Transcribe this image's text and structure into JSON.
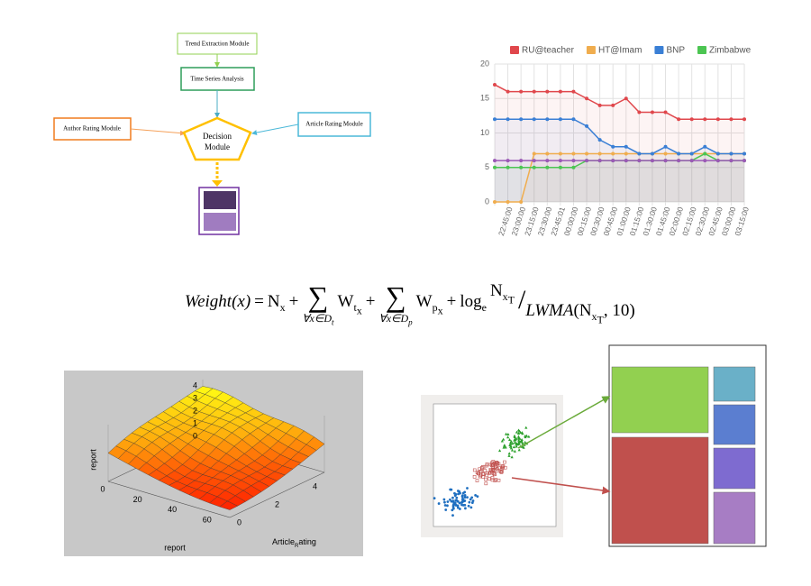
{
  "diagram": {
    "nodes": [
      "Trend Extraction Module",
      "Time Series Analysis",
      "Author Rating Module",
      "Article Rating Module"
    ],
    "decision": [
      "Decision",
      "Module"
    ]
  },
  "chart_data": {
    "type": "line",
    "categories": [
      null,
      "22:45:00",
      "23:00:00",
      "23:15:00",
      "23:30:00",
      "23:45:01",
      "00:00:00",
      "00:15:00",
      "00:30:00",
      "00:45:00",
      "01:00:00",
      "01:15:00",
      "01:30:00",
      "01:45:00",
      "02:00:00",
      "02:15:00",
      "02:30:00",
      "02:45:00",
      "03:00:00",
      "03:15:00"
    ],
    "series": [
      {
        "name": "RU@teacher",
        "color": "#e0474c",
        "values": [
          17,
          16,
          16,
          16,
          16,
          16,
          16,
          15,
          14,
          14,
          15,
          13,
          13,
          13,
          12,
          12,
          12,
          12,
          12,
          12
        ]
      },
      {
        "name": "HT@Imam",
        "color": "#f0ad4e",
        "values": [
          0,
          0,
          0,
          7,
          7,
          7,
          7,
          7,
          7,
          7,
          7,
          7,
          7,
          7,
          7,
          7,
          7,
          7,
          7,
          7
        ]
      },
      {
        "name": "BNP",
        "color": "#3a7fd5",
        "values": [
          12,
          12,
          12,
          12,
          12,
          12,
          12,
          11,
          9,
          8,
          8,
          7,
          7,
          8,
          7,
          7,
          8,
          7,
          7,
          7
        ]
      },
      {
        "name": "Zimbabwe",
        "color": "#4cc552",
        "values": [
          5,
          5,
          5,
          5,
          5,
          5,
          5,
          6,
          6,
          6,
          6,
          6,
          6,
          6,
          6,
          6,
          7,
          6,
          6,
          6
        ]
      },
      {
        "color": "#9b59b6",
        "values": [
          6,
          6,
          6,
          6,
          6,
          6,
          6,
          6,
          6,
          6,
          6,
          6,
          6,
          6,
          6,
          6,
          6,
          6,
          6,
          6
        ]
      }
    ],
    "ylim": [
      0,
      20
    ],
    "yticks": [
      0,
      5,
      10,
      15,
      20
    ],
    "grid": true,
    "legend": "top"
  },
  "formula": [
    "Weight(x)",
    "=",
    "N",
    "x",
    "+",
    "∑",
    "∀x∈D",
    "t",
    "W",
    "t",
    "x",
    "+",
    "∑",
    "∀x∈D",
    "p",
    "W",
    "p",
    "x",
    "+",
    "log",
    "e",
    "N",
    "x",
    "T",
    "/",
    "LWMA",
    "(",
    "N",
    "x",
    "T",
    ", 10)"
  ],
  "surface": {
    "z_label": "report",
    "x_label": "report",
    "y_label": [
      "Article",
      "R",
      "ating"
    ],
    "zticks": [
      0,
      1,
      2,
      3,
      4
    ],
    "xticks": [
      0,
      20,
      40,
      60
    ],
    "yticks": [
      0,
      2,
      4
    ]
  }
}
